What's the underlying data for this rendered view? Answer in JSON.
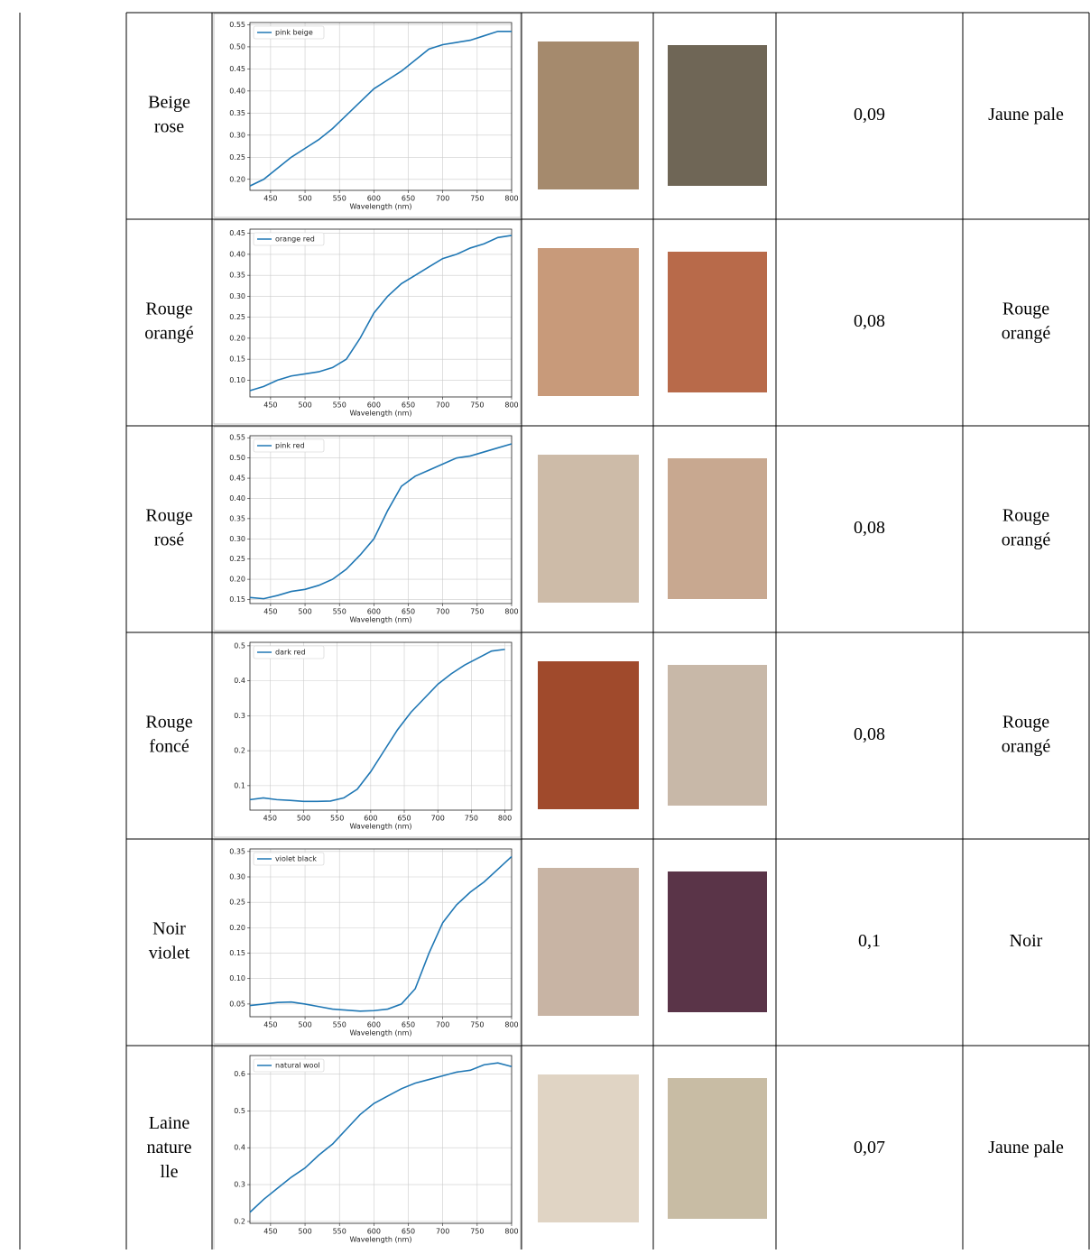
{
  "table": {
    "rows": [
      {
        "name": [
          "Beige",
          "rose"
        ],
        "value": "0,09",
        "label": [
          "Jaune pale"
        ],
        "chart": {
          "type": "line",
          "xlabel": "Wavelength (nm)",
          "x": [
            420,
            440,
            460,
            480,
            500,
            520,
            540,
            560,
            580,
            600,
            620,
            640,
            660,
            680,
            700,
            720,
            740,
            760,
            780,
            800
          ],
          "series": [
            {
              "name": "pink beige",
              "color": "#1f77b4",
              "values": [
                0.185,
                0.2,
                0.225,
                0.25,
                0.27,
                0.29,
                0.315,
                0.345,
                0.375,
                0.405,
                0.425,
                0.445,
                0.47,
                0.495,
                0.505,
                0.51,
                0.515,
                0.525,
                0.535,
                0.535
              ]
            }
          ],
          "xlim": [
            420,
            800
          ],
          "xticks": [
            450,
            500,
            550,
            600,
            650,
            700,
            750,
            800
          ],
          "ylim": [
            0.175,
            0.555
          ],
          "yticks": [
            {
              "value": 0.2,
              "label": "0.20"
            },
            {
              "value": 0.25,
              "label": "0.25"
            },
            {
              "value": 0.3,
              "label": "0.30"
            },
            {
              "value": 0.35,
              "label": "0.35"
            },
            {
              "value": 0.4,
              "label": "0.40"
            },
            {
              "value": 0.45,
              "label": "0.45"
            },
            {
              "value": 0.5,
              "label": "0.50"
            },
            {
              "value": 0.55,
              "label": "0.55"
            }
          ],
          "grid": true
        }
      },
      {
        "name": [
          "Rouge",
          "orangé"
        ],
        "value": "0,08",
        "label": [
          "Rouge",
          "orangé"
        ],
        "chart": {
          "type": "line",
          "xlabel": "Wavelength (nm)",
          "x": [
            420,
            440,
            460,
            480,
            500,
            520,
            540,
            560,
            580,
            600,
            620,
            640,
            660,
            680,
            700,
            720,
            740,
            760,
            780,
            800
          ],
          "series": [
            {
              "name": "orange red",
              "color": "#1f77b4",
              "values": [
                0.075,
                0.085,
                0.1,
                0.11,
                0.115,
                0.12,
                0.13,
                0.15,
                0.2,
                0.26,
                0.3,
                0.33,
                0.35,
                0.37,
                0.39,
                0.4,
                0.415,
                0.425,
                0.44,
                0.445
              ]
            }
          ],
          "xlim": [
            420,
            800
          ],
          "xticks": [
            450,
            500,
            550,
            600,
            650,
            700,
            750,
            800
          ],
          "ylim": [
            0.06,
            0.46
          ],
          "yticks": [
            {
              "value": 0.1,
              "label": "0.10"
            },
            {
              "value": 0.15,
              "label": "0.15"
            },
            {
              "value": 0.2,
              "label": "0.20"
            },
            {
              "value": 0.25,
              "label": "0.25"
            },
            {
              "value": 0.3,
              "label": "0.30"
            },
            {
              "value": 0.35,
              "label": "0.35"
            },
            {
              "value": 0.4,
              "label": "0.40"
            },
            {
              "value": 0.45,
              "label": "0.45"
            }
          ],
          "grid": true
        }
      },
      {
        "name": [
          "Rouge",
          "rosé"
        ],
        "value": "0,08",
        "label": [
          "Rouge",
          "orangé"
        ],
        "chart": {
          "type": "line",
          "xlabel": "Wavelength (nm)",
          "x": [
            420,
            440,
            460,
            480,
            500,
            520,
            540,
            560,
            580,
            600,
            620,
            640,
            660,
            680,
            700,
            720,
            740,
            760,
            780,
            800
          ],
          "series": [
            {
              "name": "pink red",
              "color": "#1f77b4",
              "values": [
                0.155,
                0.152,
                0.16,
                0.17,
                0.175,
                0.185,
                0.2,
                0.225,
                0.26,
                0.3,
                0.37,
                0.43,
                0.455,
                0.47,
                0.485,
                0.5,
                0.505,
                0.515,
                0.525,
                0.535
              ]
            }
          ],
          "xlim": [
            420,
            800
          ],
          "xticks": [
            450,
            500,
            550,
            600,
            650,
            700,
            750,
            800
          ],
          "ylim": [
            0.14,
            0.555
          ],
          "yticks": [
            {
              "value": 0.15,
              "label": "0.15"
            },
            {
              "value": 0.2,
              "label": "0.20"
            },
            {
              "value": 0.25,
              "label": "0.25"
            },
            {
              "value": 0.3,
              "label": "0.30"
            },
            {
              "value": 0.35,
              "label": "0.35"
            },
            {
              "value": 0.4,
              "label": "0.40"
            },
            {
              "value": 0.45,
              "label": "0.45"
            },
            {
              "value": 0.5,
              "label": "0.50"
            },
            {
              "value": 0.55,
              "label": "0.55"
            }
          ],
          "grid": true
        }
      },
      {
        "name": [
          "Rouge",
          "foncé"
        ],
        "value": "0,08",
        "label": [
          "Rouge",
          "orangé"
        ],
        "chart": {
          "type": "line",
          "xlabel": "Wavelength (nm)",
          "x": [
            420,
            440,
            460,
            480,
            500,
            520,
            540,
            560,
            580,
            600,
            620,
            640,
            660,
            680,
            700,
            720,
            740,
            760,
            780,
            800
          ],
          "series": [
            {
              "name": "dark red",
              "color": "#1f77b4",
              "values": [
                0.06,
                0.065,
                0.06,
                0.058,
                0.055,
                0.055,
                0.056,
                0.065,
                0.09,
                0.14,
                0.2,
                0.26,
                0.31,
                0.35,
                0.39,
                0.42,
                0.445,
                0.465,
                0.485,
                0.49
              ]
            }
          ],
          "xlim": [
            420,
            810
          ],
          "xticks": [
            450,
            500,
            550,
            600,
            650,
            700,
            750,
            800
          ],
          "ylim": [
            0.03,
            0.51
          ],
          "yticks": [
            0.1,
            0.2,
            0.3,
            0.4,
            0.5
          ],
          "grid": true
        }
      },
      {
        "name": [
          "Noir",
          "violet"
        ],
        "value": "0,1",
        "label": [
          "Noir"
        ],
        "chart": {
          "type": "line",
          "xlabel": "Wavelength (nm)",
          "x": [
            420,
            440,
            460,
            480,
            500,
            520,
            540,
            560,
            580,
            600,
            620,
            640,
            660,
            680,
            700,
            720,
            740,
            760,
            780,
            800
          ],
          "series": [
            {
              "name": "violet black",
              "color": "#1f77b4",
              "values": [
                0.047,
                0.05,
                0.053,
                0.054,
                0.05,
                0.045,
                0.04,
                0.038,
                0.036,
                0.037,
                0.04,
                0.05,
                0.08,
                0.15,
                0.21,
                0.245,
                0.27,
                0.29,
                0.315,
                0.34
              ]
            }
          ],
          "xlim": [
            420,
            800
          ],
          "xticks": [
            450,
            500,
            550,
            600,
            650,
            700,
            750,
            800
          ],
          "ylim": [
            0.025,
            0.355
          ],
          "yticks": [
            {
              "value": 0.05,
              "label": "0.05"
            },
            {
              "value": 0.1,
              "label": "0.10"
            },
            {
              "value": 0.15,
              "label": "0.15"
            },
            {
              "value": 0.2,
              "label": "0.20"
            },
            {
              "value": 0.25,
              "label": "0.25"
            },
            {
              "value": 0.3,
              "label": "0.30"
            },
            {
              "value": 0.35,
              "label": "0.35"
            }
          ],
          "grid": true
        }
      },
      {
        "name": [
          "Laine",
          "nature",
          "lle"
        ],
        "value": "0,07",
        "label": [
          "Jaune pale"
        ],
        "chart": {
          "type": "line",
          "xlabel": "Wavelength (nm)",
          "x": [
            420,
            440,
            460,
            480,
            500,
            520,
            540,
            560,
            580,
            600,
            620,
            640,
            660,
            680,
            700,
            720,
            740,
            760,
            780,
            800
          ],
          "series": [
            {
              "name": "natural wool",
              "color": "#1f77b4",
              "values": [
                0.225,
                0.26,
                0.29,
                0.32,
                0.345,
                0.38,
                0.41,
                0.45,
                0.49,
                0.52,
                0.54,
                0.56,
                0.575,
                0.585,
                0.595,
                0.605,
                0.61,
                0.625,
                0.63,
                0.62
              ]
            }
          ],
          "xlim": [
            420,
            800
          ],
          "xticks": [
            450,
            500,
            550,
            600,
            650,
            700,
            750,
            800
          ],
          "ylim": [
            0.195,
            0.65
          ],
          "yticks": [
            0.2,
            0.3,
            0.4,
            0.5,
            0.6
          ],
          "grid": true
        }
      }
    ]
  }
}
